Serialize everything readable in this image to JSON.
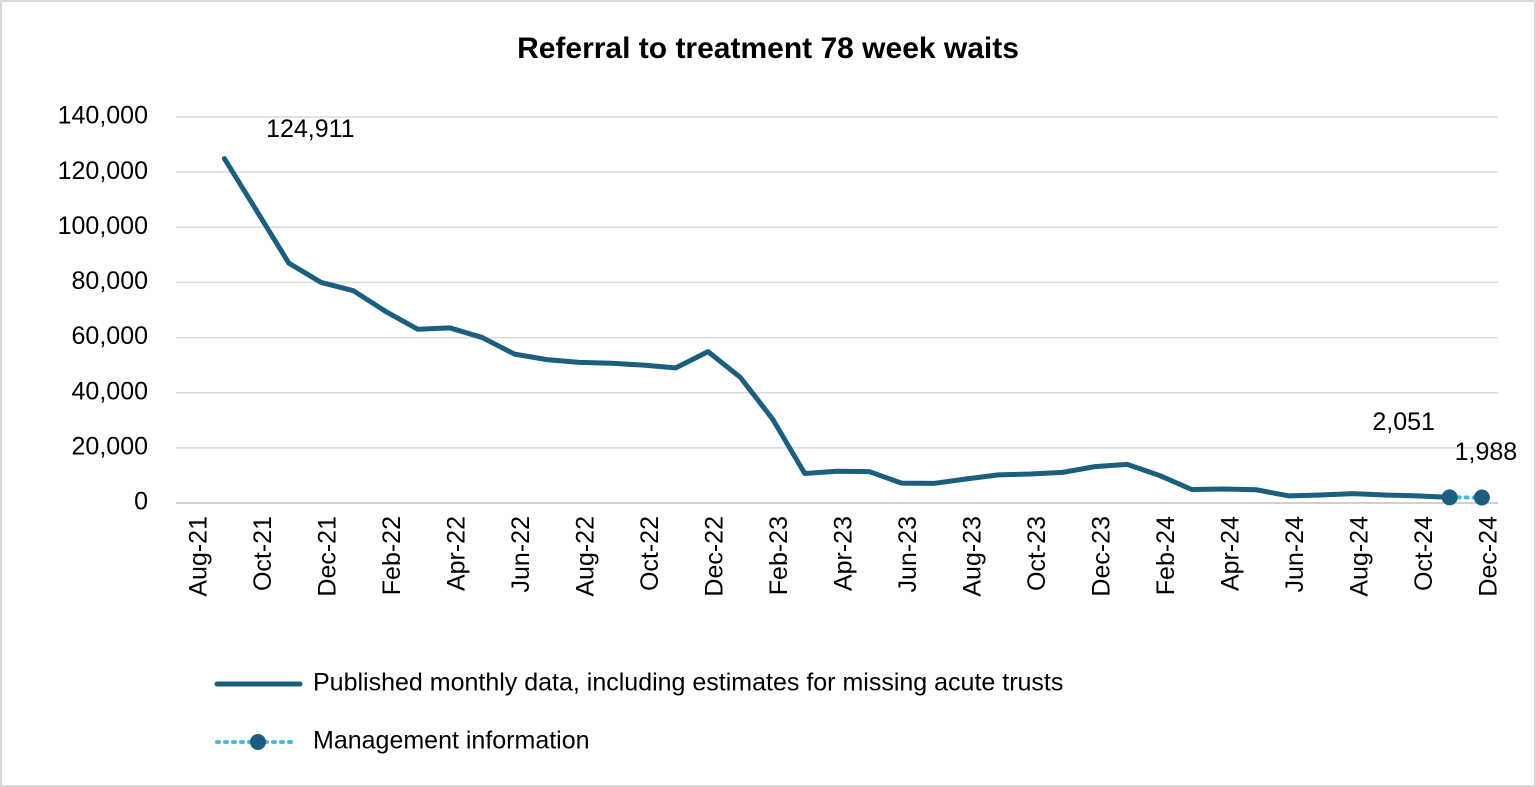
{
  "chart_data": {
    "type": "line",
    "title": "Referral to treatment 78 week waits",
    "categories": [
      "Aug-21",
      null,
      "Oct-21",
      null,
      "Dec-21",
      null,
      "Feb-22",
      null,
      "Apr-22",
      null,
      "Jun-22",
      null,
      "Aug-22",
      null,
      "Oct-22",
      null,
      "Dec-22",
      null,
      "Feb-23",
      null,
      "Apr-23",
      null,
      "Jun-23",
      null,
      "Aug-23",
      null,
      "Oct-23",
      null,
      "Dec-23",
      null,
      "Feb-24",
      null,
      "Apr-24",
      null,
      "Jun-24",
      null,
      "Aug-24",
      null,
      "Oct-24",
      null,
      "Dec-24"
    ],
    "series": [
      {
        "name": "Published monthly data, including estimates for missing acute trusts",
        "color": "#1b5e7e",
        "values": [
          null,
          124911,
          106000,
          87000,
          80000,
          77000,
          69500,
          63000,
          63500,
          60000,
          54000,
          52000,
          51000,
          50700,
          50000,
          49000,
          54900,
          45600,
          30500,
          10700,
          11500,
          11400,
          7200,
          7100,
          8700,
          10200,
          10500,
          11100,
          13200,
          14000,
          10000,
          4900,
          5100,
          4800,
          2600,
          2900,
          3400,
          2900,
          2600,
          2051,
          null
        ],
        "value_labels": [
          null,
          "124,911",
          null,
          null,
          null,
          null,
          null,
          null,
          null,
          null,
          null,
          null,
          null,
          null,
          null,
          null,
          null,
          null,
          null,
          null,
          null,
          null,
          null,
          null,
          null,
          null,
          null,
          null,
          null,
          null,
          null,
          null,
          null,
          null,
          null,
          null,
          null,
          null,
          null,
          null,
          null
        ]
      },
      {
        "name": "Management information",
        "color": "#1b5e7e",
        "line_color": "#4bb4e0",
        "values": [
          null,
          null,
          null,
          null,
          null,
          null,
          null,
          null,
          null,
          null,
          null,
          null,
          null,
          null,
          null,
          null,
          null,
          null,
          null,
          null,
          null,
          null,
          null,
          null,
          null,
          null,
          null,
          null,
          null,
          null,
          null,
          null,
          null,
          null,
          null,
          null,
          null,
          null,
          null,
          2051,
          1988
        ],
        "value_labels": [
          null,
          null,
          null,
          null,
          null,
          null,
          null,
          null,
          null,
          null,
          null,
          null,
          null,
          null,
          null,
          null,
          null,
          null,
          null,
          null,
          null,
          null,
          null,
          null,
          null,
          null,
          null,
          null,
          null,
          null,
          null,
          null,
          null,
          null,
          null,
          null,
          null,
          null,
          null,
          "2,051",
          "1,988"
        ]
      }
    ],
    "ylim": [
      0,
      140000
    ],
    "yticks": [
      0,
      {
        "value": 20000,
        "label": "20,000"
      },
      {
        "value": 40000,
        "label": "40,000"
      },
      {
        "value": 60000,
        "label": "60,000"
      },
      {
        "value": 80000,
        "label": "80,000"
      },
      {
        "value": 100000,
        "label": "100,000"
      },
      {
        "value": 120000,
        "label": "120,000"
      },
      {
        "value": 140000,
        "label": "140,000"
      }
    ],
    "grid": true
  }
}
